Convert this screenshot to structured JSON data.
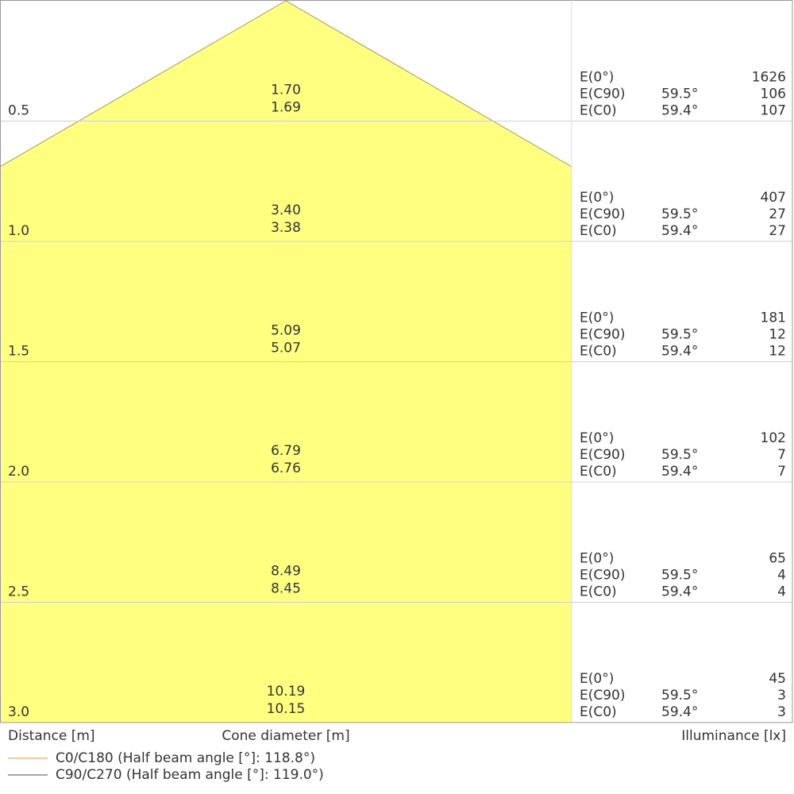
{
  "chart_data": {
    "type": "cone-diagram",
    "xlabel": "Distance [m]",
    "center_label": "Cone diameter [m]",
    "right_label": "Illuminance [lx]",
    "fill_color": "#ffff80",
    "rows": [
      {
        "distance": "0.5",
        "d_c90": "1.70",
        "d_c0": "1.69",
        "e0": "1626",
        "c90_angle": "59.5°",
        "e_c90": "106",
        "c0_angle": "59.4°",
        "e_c0": "107"
      },
      {
        "distance": "1.0",
        "d_c90": "3.40",
        "d_c0": "3.38",
        "e0": "407",
        "c90_angle": "59.5°",
        "e_c90": "27",
        "c0_angle": "59.4°",
        "e_c0": "27"
      },
      {
        "distance": "1.5",
        "d_c90": "5.09",
        "d_c0": "5.07",
        "e0": "181",
        "c90_angle": "59.5°",
        "e_c90": "12",
        "c0_angle": "59.4°",
        "e_c0": "12"
      },
      {
        "distance": "2.0",
        "d_c90": "6.79",
        "d_c0": "6.76",
        "e0": "102",
        "c90_angle": "59.5°",
        "e_c90": "7",
        "c0_angle": "59.4°",
        "e_c0": "7"
      },
      {
        "distance": "2.5",
        "d_c90": "8.49",
        "d_c0": "8.45",
        "e0": "65",
        "c90_angle": "59.5°",
        "e_c90": "4",
        "c0_angle": "59.4°",
        "e_c0": "4"
      },
      {
        "distance": "3.0",
        "d_c90": "10.19",
        "d_c0": "10.15",
        "e0": "45",
        "c90_angle": "59.5°",
        "e_c90": "3",
        "c0_angle": "59.4°",
        "e_c0": "3"
      }
    ],
    "row_labels": {
      "e0": "E(0°)",
      "e_c90": "E(C90)",
      "e_c0": "E(C0)"
    },
    "legend": [
      {
        "name": "C0/C180 (Half beam angle [°]: 118.8°)",
        "color": "#f5b87a"
      },
      {
        "name": "C90/C270 (Half beam angle [°]: 119.0°)",
        "color": "#888888"
      }
    ]
  }
}
